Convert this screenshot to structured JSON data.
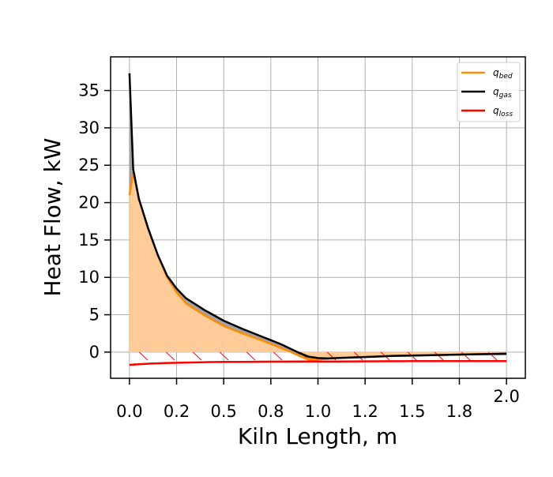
{
  "chart_data": {
    "type": "area",
    "title": "",
    "xlabel": "Kiln Length, m",
    "ylabel": "Heat Flow, kW",
    "xlim": [
      -0.1,
      2.1
    ],
    "ylim": [
      -3.5,
      39.5
    ],
    "grid": true,
    "legend_position": "top-right",
    "x_ticks": [
      0.0,
      0.25,
      0.5,
      0.75,
      1.0,
      1.25,
      1.5,
      1.75,
      2.0
    ],
    "x_tick_labels": [
      "0.0",
      "0.2",
      "0.5",
      "0.8",
      "1.0",
      "1.2",
      "1.5",
      "1.8",
      "2.0"
    ],
    "y_ticks": [
      0,
      5,
      10,
      15,
      20,
      25,
      30,
      35
    ],
    "y_tick_labels": [
      "0",
      "5",
      "10",
      "15",
      "20",
      "25",
      "30",
      "35"
    ],
    "fills": {
      "bed": "#ffcc99",
      "gas_gap": "#999999",
      "loss_hatch": "#ff0000"
    },
    "series": [
      {
        "name": "q_bed",
        "label_base": "q",
        "label_sub": "bed",
        "color": "#ff8c00",
        "x": [
          0.0,
          0.02,
          0.05,
          0.1,
          0.15,
          0.2,
          0.25,
          0.3,
          0.4,
          0.5,
          0.6,
          0.7,
          0.75,
          0.8,
          0.85,
          0.9,
          0.95,
          1.0,
          1.05,
          1.1,
          1.2,
          1.3,
          1.4,
          1.5,
          1.6,
          1.7,
          1.8,
          1.9,
          2.0
        ],
        "y": [
          21.0,
          24.0,
          20.5,
          16.5,
          13.0,
          10.0,
          8.0,
          6.5,
          4.9,
          3.5,
          2.5,
          1.6,
          1.1,
          0.6,
          0.1,
          -0.5,
          -1.0,
          -1.0,
          -0.9,
          -0.8,
          -0.7,
          -0.6,
          -0.5,
          -0.5,
          -0.4,
          -0.35,
          -0.3,
          -0.3,
          -0.3
        ]
      },
      {
        "name": "q_gas",
        "label_base": "q",
        "label_sub": "gas",
        "color": "#000000",
        "x": [
          0.0,
          0.02,
          0.05,
          0.1,
          0.15,
          0.2,
          0.25,
          0.3,
          0.4,
          0.5,
          0.6,
          0.7,
          0.75,
          0.8,
          0.85,
          0.9,
          0.95,
          1.0,
          1.05,
          1.1,
          1.2,
          1.3,
          1.4,
          1.5,
          1.6,
          1.7,
          1.8,
          1.9,
          2.0
        ],
        "y": [
          37.3,
          24.5,
          20.5,
          16.5,
          13.0,
          10.2,
          8.5,
          7.2,
          5.6,
          4.2,
          3.1,
          2.1,
          1.6,
          1.1,
          0.5,
          -0.1,
          -0.6,
          -0.8,
          -0.85,
          -0.8,
          -0.7,
          -0.6,
          -0.5,
          -0.45,
          -0.4,
          -0.35,
          -0.3,
          -0.25,
          -0.2
        ]
      },
      {
        "name": "q_loss",
        "label_base": "q",
        "label_sub": "loss",
        "color": "#ff0000",
        "x": [
          0.0,
          0.1,
          0.2,
          0.3,
          0.4,
          0.5,
          0.6,
          0.7,
          0.8,
          0.9,
          1.0,
          1.1,
          1.2,
          1.3,
          1.4,
          1.5,
          1.6,
          1.7,
          1.8,
          1.9,
          2.0
        ],
        "y": [
          -1.7,
          -1.55,
          -1.45,
          -1.4,
          -1.35,
          -1.3,
          -1.3,
          -1.28,
          -1.27,
          -1.26,
          -1.25,
          -1.25,
          -1.24,
          -1.23,
          -1.22,
          -1.21,
          -1.2,
          -1.2,
          -1.2,
          -1.2,
          -1.2
        ]
      }
    ]
  }
}
